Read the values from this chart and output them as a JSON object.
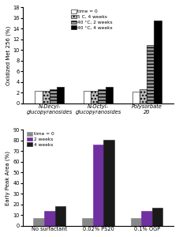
{
  "top": {
    "categories": [
      "N-Decyl-\nglucopyranosides",
      "N-Octyl-\nglucopyranosides",
      "Polysorbate\n20"
    ],
    "series_labels": [
      "time = 0",
      "5 C, 4 weeks",
      "40 °C, 2 weeks",
      "40 °C, 4 weeks"
    ],
    "values": [
      [
        2.3,
        2.3,
        2.2
      ],
      [
        2.3,
        2.3,
        2.7
      ],
      [
        2.6,
        2.6,
        11.0
      ],
      [
        3.1,
        3.1,
        15.5
      ]
    ],
    "colors": [
      "#ffffff",
      "#bbbbbb",
      "#999999",
      "#000000"
    ],
    "hatches": [
      "",
      "....",
      "----",
      ""
    ],
    "edgecolors": [
      "#000000",
      "#000000",
      "#000000",
      "#000000"
    ],
    "ylabel": "Oxidized Met 256 (%)",
    "ylim": [
      0,
      18
    ],
    "yticks": [
      0,
      2,
      4,
      6,
      8,
      10,
      12,
      14,
      16,
      18
    ]
  },
  "bottom": {
    "categories": [
      "No surfactant",
      "0.02% PS20",
      "0.1% OGP"
    ],
    "series_labels": [
      "time = 0",
      "2 weeks",
      "4 weeks"
    ],
    "values": [
      [
        7.5,
        7.5,
        7.5
      ],
      [
        13.5,
        76.0,
        13.5
      ],
      [
        18.0,
        81.0,
        17.0
      ]
    ],
    "colors": [
      "#888888",
      "#7030a0",
      "#1a1a1a"
    ],
    "hatches": [
      "",
      "",
      ""
    ],
    "ylabel": "Early Peak Area (%)",
    "ylim": [
      0,
      90
    ],
    "yticks": [
      0,
      10,
      20,
      30,
      40,
      50,
      60,
      70,
      80,
      90
    ]
  }
}
